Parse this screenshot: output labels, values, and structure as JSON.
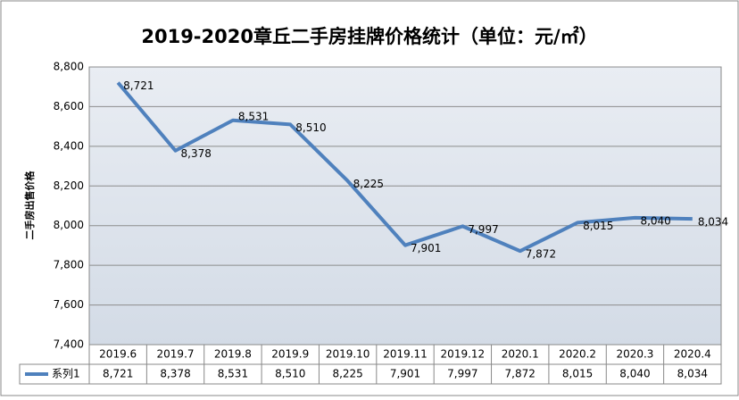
{
  "chart_data": {
    "type": "line",
    "title": "2019-2020章丘二手房挂牌价格统计（单位：元/㎡）",
    "y_label": "二手房出售价格",
    "categories": [
      "2019.6",
      "2019.7",
      "2019.8",
      "2019.9",
      "2019.10",
      "2019.11",
      "2019.12",
      "2020.1",
      "2020.2",
      "2020.3",
      "2020.4"
    ],
    "series": [
      {
        "name": "系列1",
        "color": "#4f81bd",
        "values": [
          8721,
          8378,
          8531,
          8510,
          8225,
          7901,
          7997,
          7872,
          8015,
          8040,
          8034
        ],
        "value_labels": [
          "8,721",
          "8,378",
          "8,531",
          "8,510",
          "8,225",
          "7,901",
          "7,997",
          "7,872",
          "8,015",
          "8,040",
          "8,034"
        ]
      }
    ],
    "ylim": [
      7400,
      8800
    ],
    "yticks": [
      {
        "value": 7400,
        "label": "7,400"
      },
      {
        "value": 7600,
        "label": "7,600"
      },
      {
        "value": 7800,
        "label": "7,800"
      },
      {
        "value": 8000,
        "label": "8,000"
      },
      {
        "value": 8200,
        "label": "8,200"
      },
      {
        "value": 8400,
        "label": "8,400"
      },
      {
        "value": 8600,
        "label": "8,600"
      },
      {
        "value": 8800,
        "label": "8,800"
      }
    ],
    "grid": true,
    "data_table": true
  }
}
